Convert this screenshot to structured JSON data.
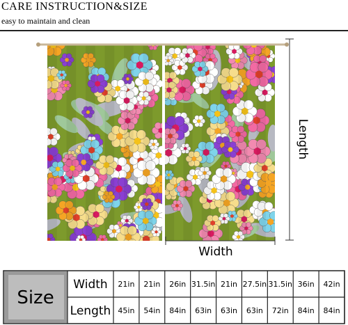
{
  "header": {
    "title": "CARE INSTRUCTION&SIZE",
    "subtitle": "easy to maintain and clean"
  },
  "dimensions": {
    "width_label": "Width",
    "length_label": "Length"
  },
  "table": {
    "size_label": "Size",
    "rows": [
      {
        "label": "Width",
        "cells": [
          "21in",
          "21in",
          "26in",
          "31.5in",
          "21in",
          "27.5in",
          "31.5in",
          "36in",
          "42in"
        ]
      },
      {
        "label": "Length",
        "cells": [
          "45in",
          "54in",
          "84in",
          "63in",
          "63in",
          "63in",
          "72in",
          "84in",
          "84in"
        ]
      }
    ]
  }
}
